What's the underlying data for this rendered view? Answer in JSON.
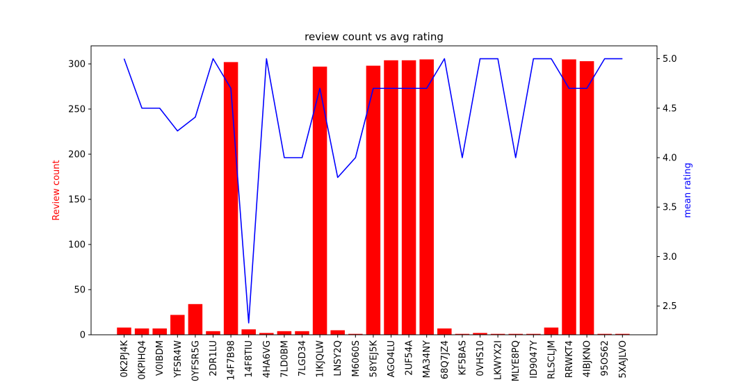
{
  "chart_data": {
    "type": "bar",
    "title": "review count vs avg rating",
    "xlabel": "",
    "ylabel": "Review count",
    "y2label": "mean rating",
    "categories": [
      "0K2PJ4K",
      "0KPIHQ4",
      "V0IBDM",
      "YFSR4W",
      "0YFSR5G",
      "2DR1LU",
      "14F7B98",
      "14F8TIU",
      "4HA6VG",
      "7LD0BM",
      "7LGD34",
      "1IKJQLW",
      "LNSY2Q",
      "M6060S",
      "58YEJ5K",
      "AGO4LU",
      "2UF54A",
      "MA34NY",
      "68Q7JZ4",
      "KF5BAS",
      "0VHS10",
      "LKWYX2I",
      "MLYE8PQ",
      "ID9047Y",
      "RLSCLJM",
      "RRWKT4",
      "4IBJKNO",
      "95OS62",
      "5XAJLVO"
    ],
    "ylim": [
      0,
      320
    ],
    "y2lim": [
      2.21,
      5.13
    ],
    "yticks": [
      0,
      50,
      100,
      150,
      200,
      250,
      300
    ],
    "y2ticks": [
      2.5,
      3.0,
      3.5,
      4.0,
      4.5,
      5.0
    ],
    "y2tick_labels": [
      "2.5",
      "3.0",
      "3.5",
      "4.0",
      "4.5",
      "5.0"
    ],
    "grid": false,
    "series": [
      {
        "type": "bar",
        "axis": "left",
        "color": "#ff0000",
        "values": [
          8,
          7,
          7,
          22,
          34,
          4,
          302,
          6,
          2,
          4,
          4,
          297,
          5,
          1,
          298,
          304,
          304,
          305,
          7,
          1,
          2,
          1,
          1,
          1,
          8,
          305,
          303,
          1,
          1
        ]
      },
      {
        "type": "line",
        "axis": "right",
        "color": "#0000ff",
        "values": [
          5.0,
          4.5,
          4.5,
          4.27,
          4.41,
          5.0,
          4.7,
          2.33,
          5.0,
          4.0,
          4.0,
          4.7,
          3.8,
          4.0,
          4.7,
          4.7,
          4.7,
          4.7,
          5.0,
          4.0,
          5.0,
          5.0,
          4.0,
          5.0,
          5.0,
          4.7,
          4.7,
          5.0,
          5.0
        ]
      }
    ]
  }
}
